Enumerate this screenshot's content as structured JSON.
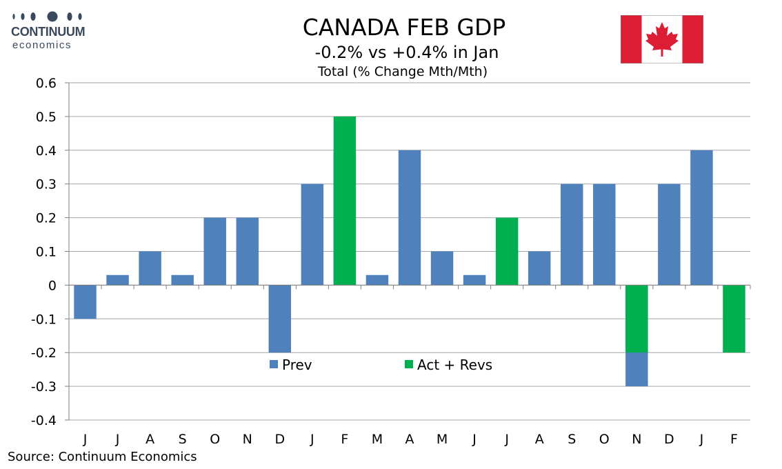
{
  "logo": {
    "name": "CONTINUUM",
    "sub": "economics"
  },
  "title": "CANADA FEB GDP",
  "subtitle": "-0.2% vs +0.4% in Jan",
  "source": "Source: Continuum Economics",
  "colors": {
    "prev": "#4f81bd",
    "act": "#00b050",
    "flag_red": "#dc1e35"
  },
  "chart_data": {
    "type": "bar",
    "title": "Total (% Change Mth/Mth)",
    "categories": [
      "J",
      "J",
      "A",
      "S",
      "O",
      "N",
      "D",
      "J",
      "F",
      "M",
      "A",
      "M",
      "J",
      "J",
      "A",
      "S",
      "O",
      "N",
      "D",
      "J",
      "F"
    ],
    "series": [
      {
        "name": "Prev",
        "values": [
          -0.1,
          0.03,
          0.1,
          0.03,
          0.2,
          0.2,
          -0.2,
          0.3,
          0.4,
          0.03,
          0.4,
          0.1,
          0.03,
          0.1,
          0.1,
          0.3,
          0.3,
          -0.3,
          0.3,
          0.4,
          null
        ]
      },
      {
        "name": "Act + Revs",
        "values": [
          null,
          null,
          null,
          null,
          null,
          null,
          null,
          null,
          0.5,
          null,
          null,
          null,
          null,
          0.2,
          null,
          null,
          null,
          -0.2,
          null,
          null,
          -0.2
        ]
      }
    ],
    "ylim": [
      -0.4,
      0.6
    ],
    "yticks": [
      "-0.4",
      "-0.3",
      "-0.2",
      "-0.1",
      "0",
      "0.1",
      "0.2",
      "0.3",
      "0.4",
      "0.5",
      "0.6"
    ],
    "grid": true,
    "legend": "bottom-center"
  }
}
